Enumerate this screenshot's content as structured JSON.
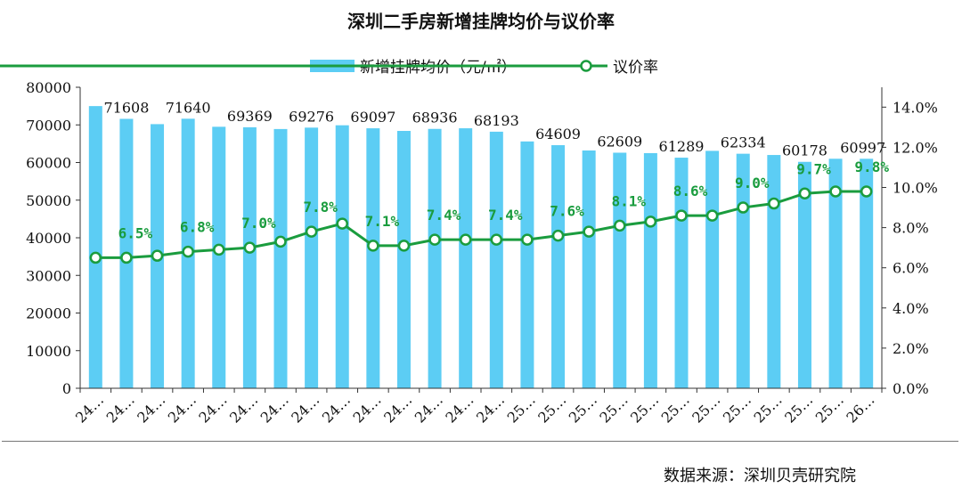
{
  "title": "深圳二手房新增挂牌均价与议价率",
  "source": "数据来源：深圳贝壳研究院",
  "colors": {
    "bar": "#5ccdf4",
    "line": "#1a9c3e",
    "axis": "#333333"
  },
  "chart_data": {
    "type": "bar+line",
    "title": "深圳二手房新增挂牌均价与议价率",
    "categories": [
      "24…",
      "24…",
      "24…",
      "24…",
      "24…",
      "24…",
      "24…",
      "24…",
      "24…",
      "24…",
      "24…",
      "24…",
      "24…",
      "24…",
      "25…",
      "25…",
      "25…",
      "25…",
      "25…",
      "25…",
      "25…",
      "25…",
      "25…",
      "25…",
      "25…",
      "26…"
    ],
    "series": [
      {
        "name": "新增挂牌均价（元/㎡）",
        "type": "bar",
        "axis": "left",
        "values": [
          75000,
          71608,
          70200,
          71640,
          69500,
          69369,
          68900,
          69276,
          69900,
          69097,
          68400,
          68936,
          69100,
          68193,
          65600,
          64609,
          63200,
          62609,
          62500,
          61289,
          63100,
          62334,
          62000,
          60178,
          61000,
          60997
        ],
        "labels": [
          "",
          "71608",
          "",
          "71640",
          "",
          "69369",
          "",
          "69276",
          "",
          "69097",
          "",
          "68936",
          "",
          "68193",
          "",
          "64609",
          "",
          "62609",
          "",
          "61289",
          "",
          "62334",
          "",
          "60178",
          "",
          "60997"
        ]
      },
      {
        "name": "议价率",
        "type": "line",
        "axis": "right",
        "values": [
          6.5,
          6.5,
          6.6,
          6.8,
          6.9,
          7.0,
          7.3,
          7.8,
          8.2,
          7.1,
          7.1,
          7.4,
          7.4,
          7.4,
          7.4,
          7.6,
          7.8,
          8.1,
          8.3,
          8.6,
          8.6,
          9.0,
          9.2,
          9.7,
          9.8,
          9.8
        ],
        "labels": [
          "",
          "6.5%",
          "",
          "6.8%",
          "",
          "7.0%",
          "",
          "7.8%",
          "",
          "7.1%",
          "",
          "7.4%",
          "",
          "7.4%",
          "",
          "7.6%",
          "",
          "8.1%",
          "",
          "8.6%",
          "",
          "9.0%",
          "",
          "9.7%",
          "",
          "9.8%"
        ]
      }
    ],
    "ylim_left": [
      0,
      80000
    ],
    "yticks_left": [
      "0",
      "10000",
      "20000",
      "30000",
      "40000",
      "50000",
      "60000",
      "70000",
      "80000"
    ],
    "ylim_right": [
      0,
      15
    ],
    "yticks_right": [
      "0.0%",
      "2.0%",
      "4.0%",
      "6.0%",
      "8.0%",
      "10.0%",
      "12.0%",
      "14.0%"
    ],
    "legend": "top",
    "grid": false
  }
}
